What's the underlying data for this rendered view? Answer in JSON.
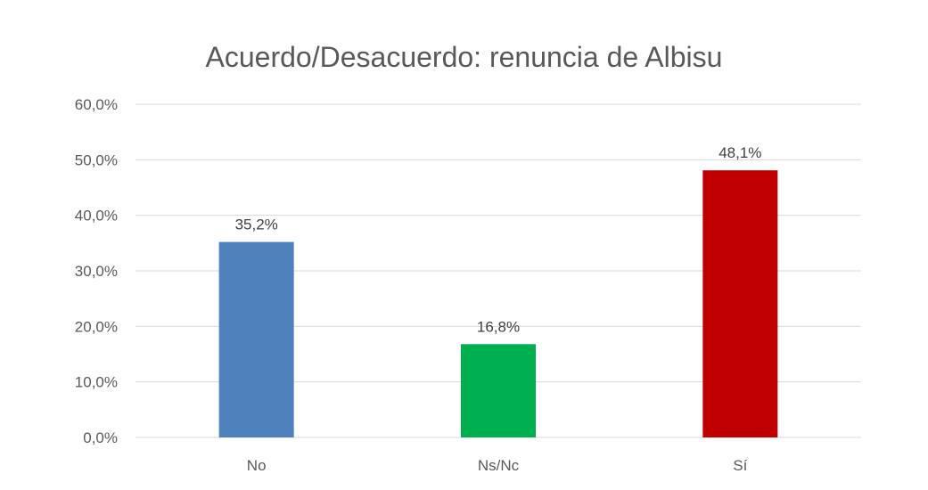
{
  "chart_data": {
    "type": "bar",
    "title": "Acuerdo/Desacuerdo: renuncia de Albisu",
    "xlabel": "",
    "ylabel": "",
    "categories": [
      "No",
      "Ns/Nc",
      "Sí"
    ],
    "values": [
      35.2,
      16.8,
      48.1
    ],
    "value_labels": [
      "35,2%",
      "16,8%",
      "48,1%"
    ],
    "colors": [
      "#4F81BD",
      "#00B050",
      "#C00000"
    ],
    "ylim": [
      0,
      60
    ],
    "yticks": [
      0,
      10,
      20,
      30,
      40,
      50,
      60
    ],
    "ytick_labels": [
      "0,0%",
      "10,0%",
      "20,0%",
      "30,0%",
      "40,0%",
      "50,0%",
      "60,0%"
    ],
    "grid": true,
    "legend": "none",
    "gridline_color": "#D9D9D9"
  }
}
